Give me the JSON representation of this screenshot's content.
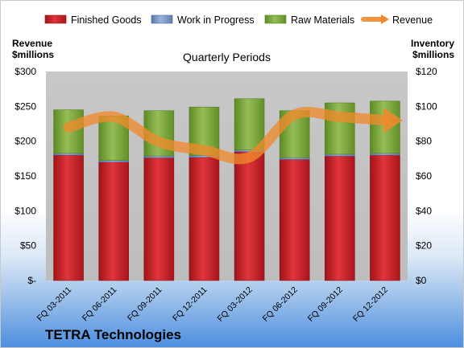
{
  "company": "TETRA Technologies",
  "chart_data": {
    "type": "bar",
    "title": "Quarterly Periods",
    "left_axis_label": [
      "Revenue",
      "$millions"
    ],
    "right_axis_label": [
      "Inventory",
      "$millions"
    ],
    "categories": [
      "FQ 03-2011",
      "FQ 06-2011",
      "FQ 09-2011",
      "FQ 12-2011",
      "FQ 03-2012",
      "FQ 06-2012",
      "FQ 09-2012",
      "FQ 12-2012"
    ],
    "left_ylim": [
      0,
      300
    ],
    "left_ticks": [
      "$-",
      "$50",
      "$100",
      "$150",
      "$200",
      "$250",
      "$300"
    ],
    "right_ylim": [
      0,
      120
    ],
    "right_ticks": [
      "$0",
      "$20",
      "$40",
      "$60",
      "$80",
      "$100",
      "$120"
    ],
    "stacked": true,
    "grid": false,
    "legend_position": "top",
    "series": [
      {
        "name": "Finished Goods",
        "axis": "right",
        "color": "#c0262c",
        "values": [
          72,
          68,
          70.5,
          70.8,
          74,
          69.5,
          71.5,
          72
        ]
      },
      {
        "name": "Work in Progress",
        "axis": "right",
        "color": "#7b96c6",
        "values": [
          1,
          1,
          1,
          1,
          1,
          1,
          1,
          1
        ]
      },
      {
        "name": "Raw Materials",
        "axis": "right",
        "color": "#79a13a",
        "values": [
          25,
          25.5,
          26,
          27.8,
          29.4,
          27,
          29.5,
          30
        ]
      },
      {
        "name": "Revenue",
        "axis": "left",
        "type": "line",
        "color": "#f08a2c",
        "values": [
          220,
          235,
          199,
          187,
          177,
          238,
          235,
          230
        ]
      }
    ]
  }
}
